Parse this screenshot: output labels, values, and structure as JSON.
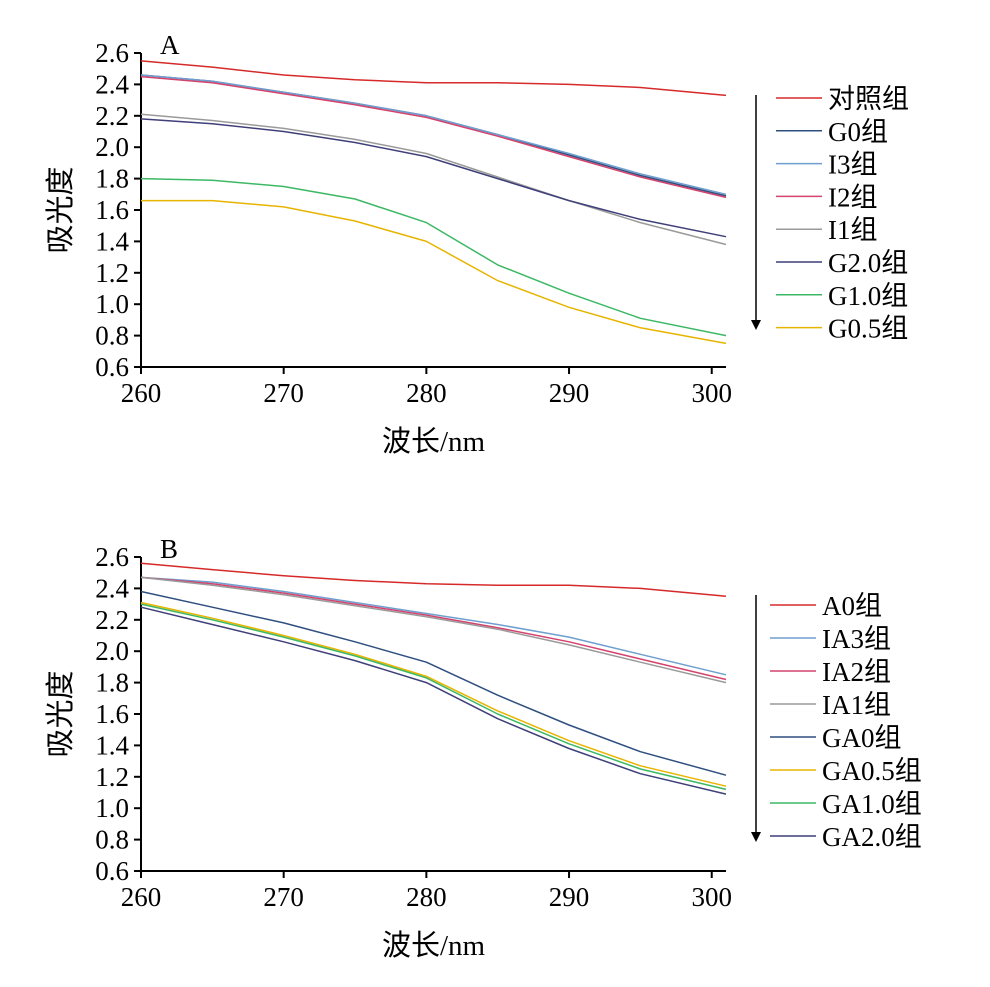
{
  "chart_data": [
    {
      "type": "line",
      "panel_label": "A",
      "xlabel": "波长/nm",
      "ylabel": "吸光度",
      "xlim": [
        260,
        301
      ],
      "ylim": [
        0.6,
        2.6
      ],
      "x_ticks": [
        "260",
        "270",
        "280",
        "290",
        "300"
      ],
      "y_ticks": [
        "0.6",
        "0.8",
        "1.0",
        "1.2",
        "1.4",
        "1.6",
        "1.8",
        "2.0",
        "2.2",
        "2.4",
        "2.6"
      ],
      "x": [
        260,
        265,
        270,
        275,
        280,
        285,
        290,
        295,
        301
      ],
      "legend_position": "right",
      "arrow": "down",
      "series": [
        {
          "name": "对照组",
          "color": "#d62a2a",
          "values": [
            2.55,
            2.51,
            2.46,
            2.43,
            2.41,
            2.41,
            2.4,
            2.38,
            2.33
          ]
        },
        {
          "name": "G0组",
          "color": "#2f4f80",
          "values": [
            2.46,
            2.42,
            2.35,
            2.28,
            2.2,
            2.08,
            1.95,
            1.82,
            1.69
          ]
        },
        {
          "name": "I3组",
          "color": "#6e9fcf",
          "values": [
            2.46,
            2.42,
            2.35,
            2.28,
            2.2,
            2.08,
            1.96,
            1.83,
            1.7
          ]
        },
        {
          "name": "I2组",
          "color": "#d4436e",
          "values": [
            2.45,
            2.41,
            2.34,
            2.27,
            2.19,
            2.07,
            1.94,
            1.81,
            1.68
          ]
        },
        {
          "name": "I1组",
          "color": "#9a9a9a",
          "values": [
            2.21,
            2.17,
            2.12,
            2.05,
            1.96,
            1.81,
            1.66,
            1.52,
            1.38
          ]
        },
        {
          "name": "G2.0组",
          "color": "#3f3f7a",
          "values": [
            2.18,
            2.15,
            2.1,
            2.03,
            1.94,
            1.8,
            1.66,
            1.54,
            1.43
          ]
        },
        {
          "name": "G1.0组",
          "color": "#3cb864",
          "values": [
            1.8,
            1.79,
            1.75,
            1.67,
            1.52,
            1.25,
            1.07,
            0.91,
            0.8
          ]
        },
        {
          "name": "G0.5组",
          "color": "#e8b400",
          "values": [
            1.66,
            1.66,
            1.62,
            1.53,
            1.4,
            1.15,
            0.98,
            0.85,
            0.75
          ]
        }
      ]
    },
    {
      "type": "line",
      "panel_label": "B",
      "xlabel": "波长/nm",
      "ylabel": "吸光度",
      "xlim": [
        260,
        301
      ],
      "ylim": [
        0.6,
        2.6
      ],
      "x_ticks": [
        "260",
        "270",
        "280",
        "290",
        "300"
      ],
      "y_ticks": [
        "0.6",
        "0.8",
        "1.0",
        "1.2",
        "1.4",
        "1.6",
        "1.8",
        "2.0",
        "2.2",
        "2.4",
        "2.6"
      ],
      "x": [
        260,
        265,
        270,
        275,
        280,
        285,
        290,
        295,
        301
      ],
      "legend_position": "right",
      "arrow": "down",
      "series": [
        {
          "name": "A0组",
          "color": "#d62a2a",
          "values": [
            2.56,
            2.52,
            2.48,
            2.45,
            2.43,
            2.42,
            2.42,
            2.4,
            2.35
          ]
        },
        {
          "name": "IA3组",
          "color": "#6e9fcf",
          "values": [
            2.47,
            2.44,
            2.38,
            2.31,
            2.24,
            2.17,
            2.09,
            1.98,
            1.85
          ]
        },
        {
          "name": "IA2组",
          "color": "#d4436e",
          "values": [
            2.47,
            2.43,
            2.37,
            2.3,
            2.23,
            2.15,
            2.06,
            1.95,
            1.82
          ]
        },
        {
          "name": "IA1组",
          "color": "#9a9a9a",
          "values": [
            2.47,
            2.42,
            2.36,
            2.29,
            2.22,
            2.14,
            2.04,
            1.93,
            1.8
          ]
        },
        {
          "name": "GA0组",
          "color": "#2f4f80",
          "values": [
            2.38,
            2.28,
            2.18,
            2.06,
            1.93,
            1.72,
            1.53,
            1.36,
            1.21
          ]
        },
        {
          "name": "GA0.5组",
          "color": "#e8b400",
          "values": [
            2.31,
            2.21,
            2.1,
            1.98,
            1.84,
            1.62,
            1.43,
            1.27,
            1.14
          ]
        },
        {
          "name": "GA1.0组",
          "color": "#3cb864",
          "values": [
            2.3,
            2.2,
            2.09,
            1.97,
            1.83,
            1.6,
            1.41,
            1.25,
            1.12
          ]
        },
        {
          "name": "GA2.0组",
          "color": "#3f3f7a",
          "values": [
            2.28,
            2.17,
            2.06,
            1.94,
            1.8,
            1.57,
            1.38,
            1.22,
            1.09
          ]
        }
      ]
    }
  ]
}
